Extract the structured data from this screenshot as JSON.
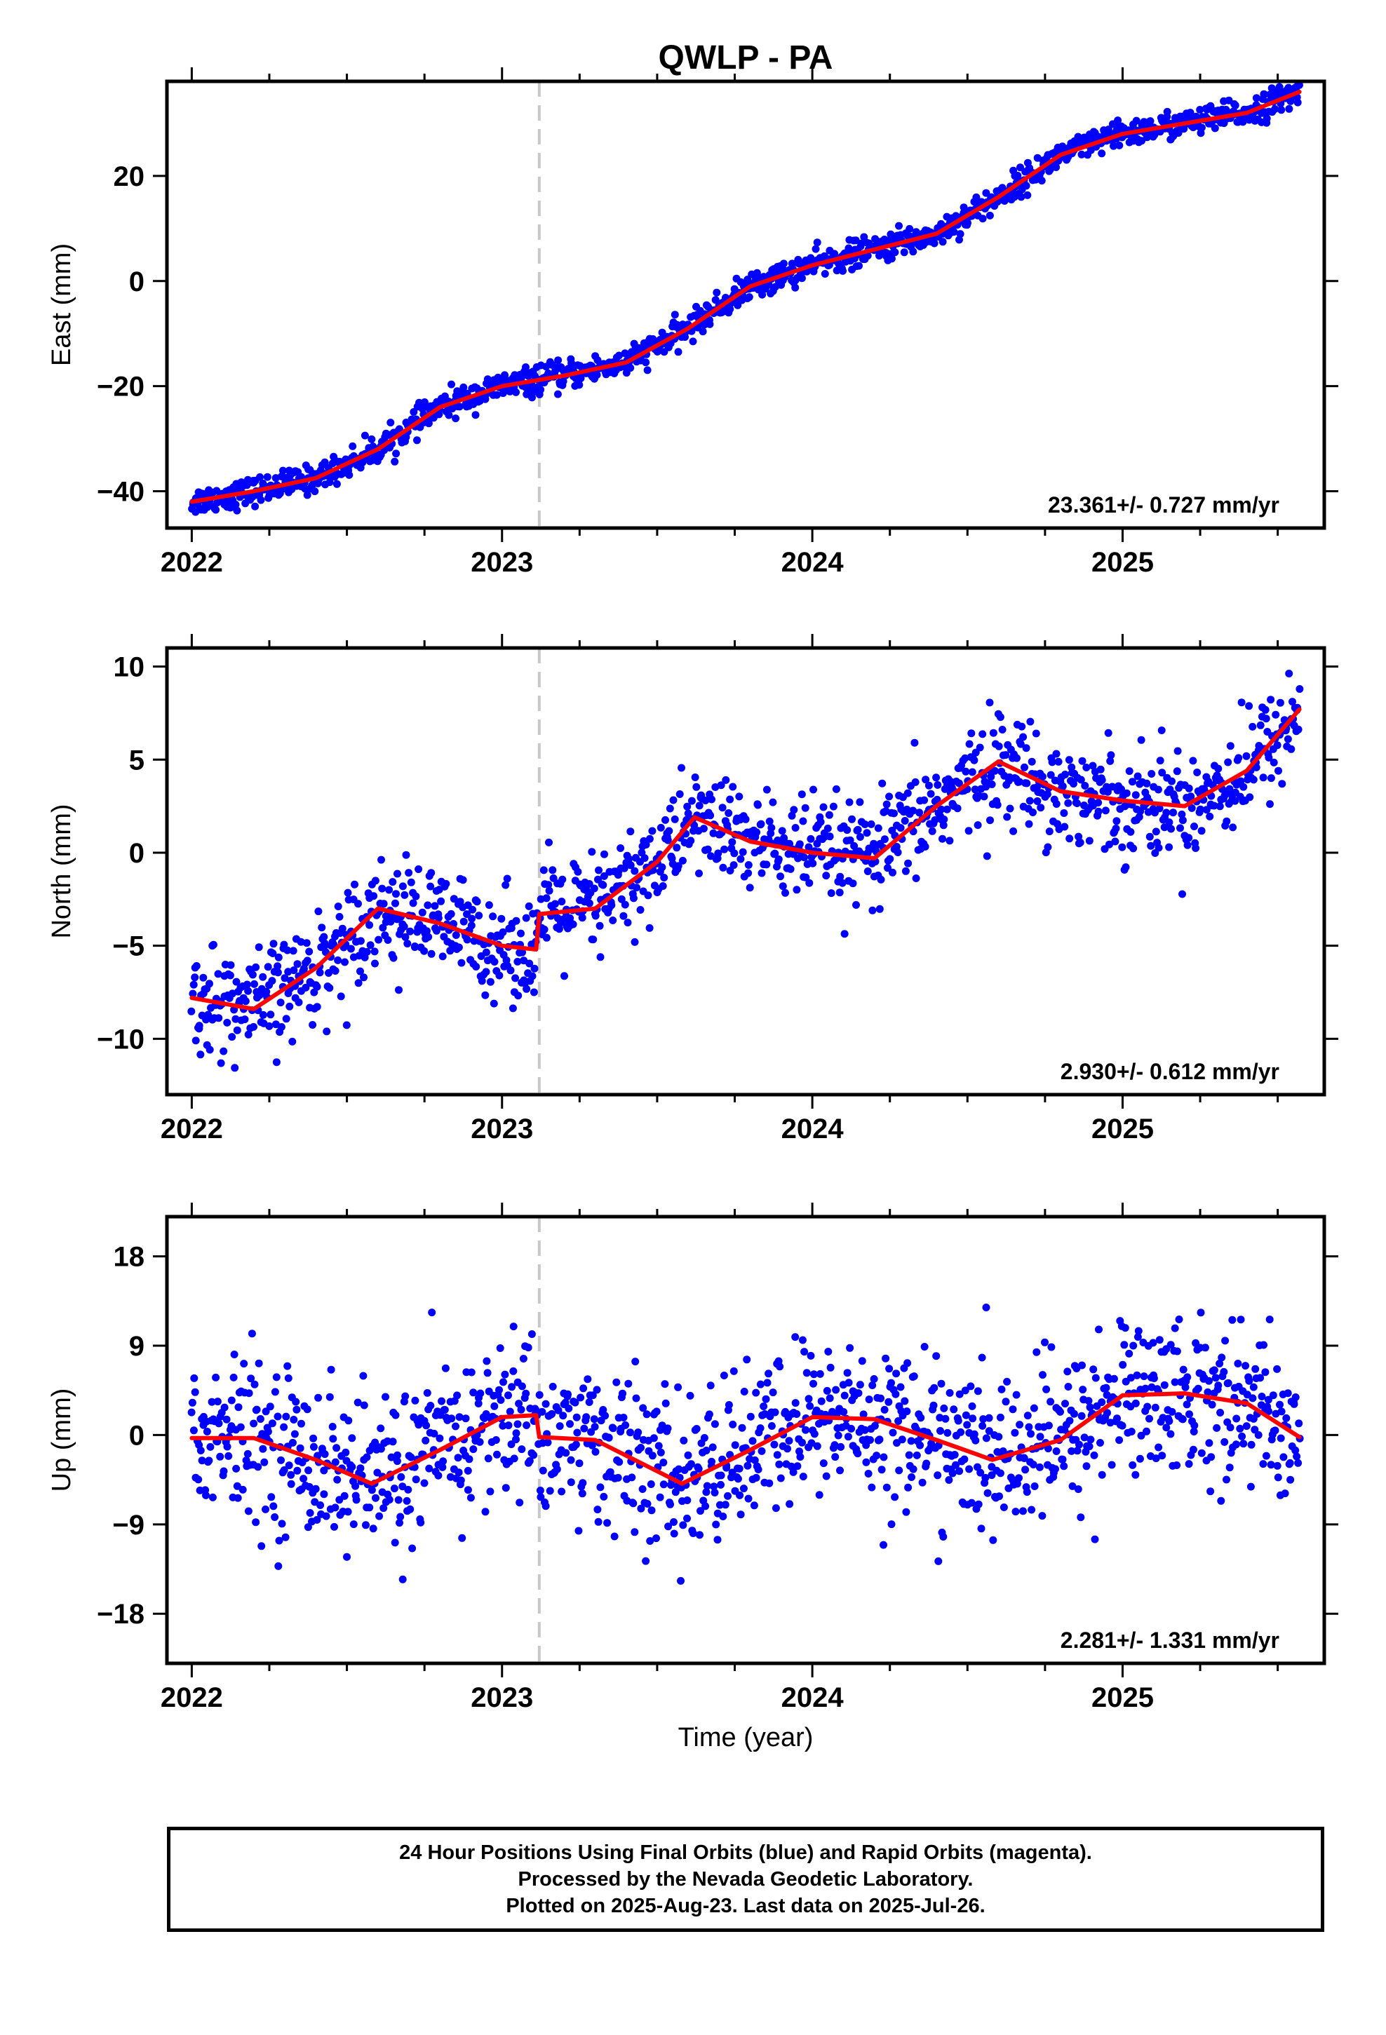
{
  "title": "QWLP - PA",
  "xlabel": "Time (year)",
  "footer": {
    "line1": "24 Hour Positions Using Final Orbits (blue) and Rapid Orbits (magenta).",
    "line2": "Processed by the Nevada Geodetic Laboratory.",
    "line3": "Plotted on 2025-Aug-23. Last data on 2025-Jul-26."
  },
  "colors": {
    "points": "#0000ff",
    "model": "#ff0000",
    "event_line": "#c8c8c8",
    "frame": "#000000"
  },
  "chart_data": [
    {
      "type": "scatter",
      "panel": "east",
      "ylabel": "East (mm)",
      "xlim": [
        2021.92,
        2025.65
      ],
      "ylim": [
        -47,
        38
      ],
      "x_ticks": [
        2022,
        2023,
        2024,
        2025
      ],
      "y_ticks": [
        -40,
        -20,
        0,
        20
      ],
      "event_line_x": 2023.12,
      "rate_label": "23.361+/- 0.727 mm/yr",
      "series": [
        {
          "role": "model_fit",
          "x": [
            2022.0,
            2022.2,
            2022.4,
            2022.6,
            2022.8,
            2023.0,
            2023.2,
            2023.4,
            2023.6,
            2023.8,
            2024.0,
            2024.2,
            2024.4,
            2024.6,
            2024.8,
            2025.0,
            2025.2,
            2025.4,
            2025.57
          ],
          "y": [
            -42,
            -40,
            -37.5,
            -32,
            -24,
            -20,
            -18,
            -15.5,
            -9,
            -1,
            3,
            6,
            9,
            16,
            24,
            28,
            30,
            32,
            36
          ]
        }
      ],
      "observations": {
        "count": 1270,
        "noise_mm": 1.3,
        "note": "daily positions scattered around model"
      }
    },
    {
      "type": "scatter",
      "panel": "north",
      "ylabel": "North (mm)",
      "xlim": [
        2021.92,
        2025.65
      ],
      "ylim": [
        -13,
        11
      ],
      "x_ticks": [
        2022,
        2023,
        2024,
        2025
      ],
      "y_ticks": [
        -10,
        -5,
        0,
        5,
        10
      ],
      "event_line_x": 2023.12,
      "rate_label": "2.930+/- 0.612 mm/yr",
      "series": [
        {
          "role": "model_fit",
          "x": [
            2022.0,
            2022.2,
            2022.4,
            2022.6,
            2022.8,
            2023.0,
            2023.11,
            2023.12,
            2023.3,
            2023.5,
            2023.62,
            2023.8,
            2024.0,
            2024.2,
            2024.4,
            2024.6,
            2024.8,
            2025.0,
            2025.2,
            2025.4,
            2025.57
          ],
          "y": [
            -7.8,
            -8.4,
            -6.2,
            -3,
            -3.8,
            -5,
            -5.2,
            -3.3,
            -3,
            -0.5,
            1.9,
            0.6,
            0,
            -0.3,
            2.5,
            4.9,
            3.3,
            2.8,
            2.5,
            4.4,
            7.7
          ]
        }
      ],
      "observations": {
        "count": 1270,
        "noise_mm": 1.4
      }
    },
    {
      "type": "scatter",
      "panel": "up",
      "ylabel": "Up (mm)",
      "xlim": [
        2021.92,
        2025.65
      ],
      "ylim": [
        -23,
        22
      ],
      "x_ticks": [
        2022,
        2023,
        2024,
        2025
      ],
      "y_ticks": [
        -18,
        -9,
        0,
        9,
        18
      ],
      "event_line_x": 2023.12,
      "rate_label": "2.281+/- 1.331 mm/yr",
      "series": [
        {
          "role": "model_fit",
          "x": [
            2022.0,
            2022.2,
            2022.4,
            2022.58,
            2022.8,
            2023.0,
            2023.11,
            2023.12,
            2023.3,
            2023.58,
            2023.8,
            2024.0,
            2024.2,
            2024.4,
            2024.58,
            2024.8,
            2025.0,
            2025.2,
            2025.4,
            2025.57
          ],
          "y": [
            -0.3,
            -0.3,
            -2.5,
            -4.9,
            -1.5,
            1.8,
            2,
            -0.2,
            -0.5,
            -4.9,
            -1.5,
            1.8,
            1.6,
            -0.5,
            -2.5,
            -0.5,
            4,
            4.2,
            3.2,
            -0.2
          ]
        }
      ],
      "observations": {
        "count": 1270,
        "noise_mm": 4.0
      }
    }
  ]
}
